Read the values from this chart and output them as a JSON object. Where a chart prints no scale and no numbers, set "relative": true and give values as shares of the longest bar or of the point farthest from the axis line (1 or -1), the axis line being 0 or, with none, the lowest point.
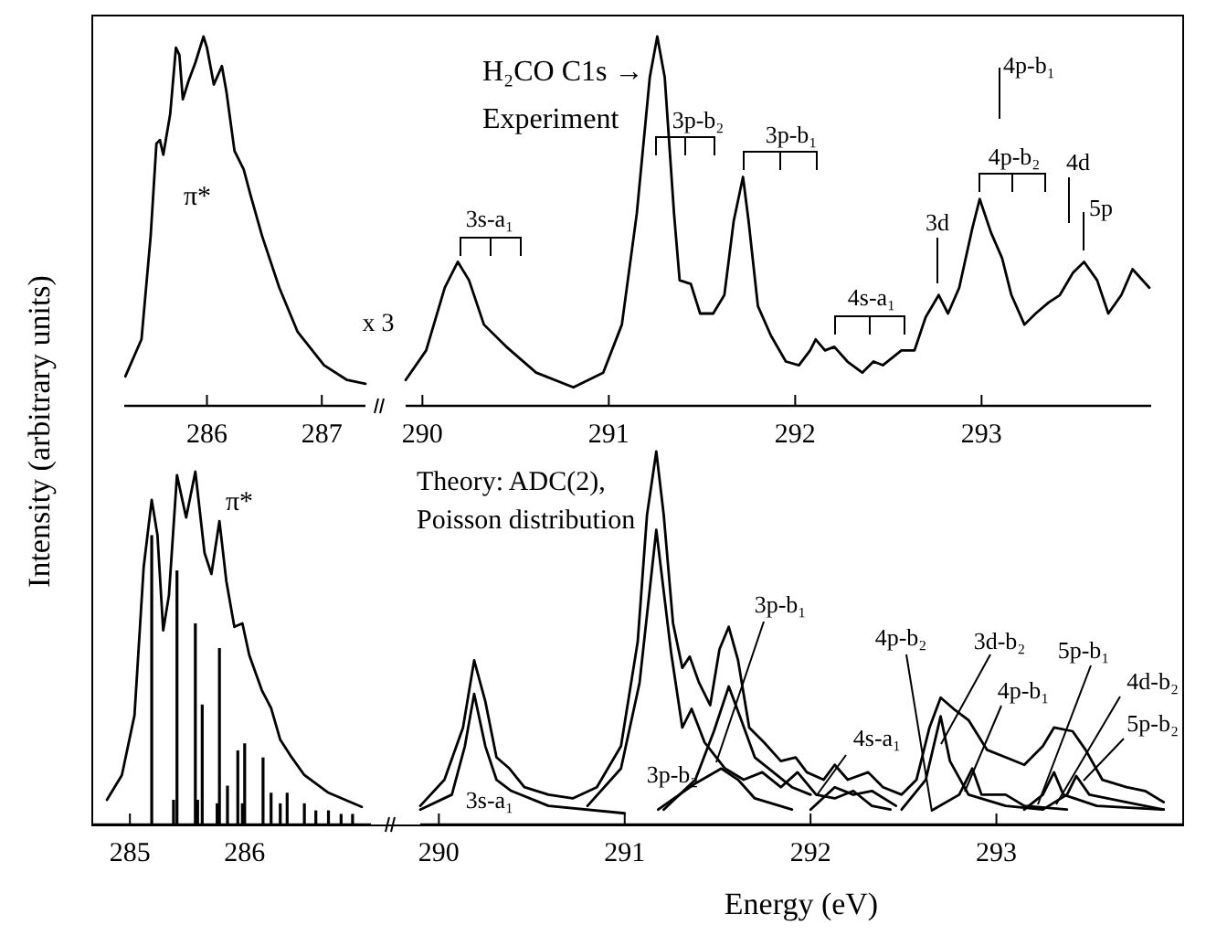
{
  "chart_data": [
    {
      "type": "line",
      "relative": true,
      "tick_labels": "x",
      "xlim": [
        285.28,
        287.38
      ],
      "xticks": [
        286,
        287
      ],
      "ylabel": "Intensity (arbitrary units)",
      "series": [
        {
          "color": "#000000",
          "x": [
            285.29,
            285.43,
            285.51,
            285.56,
            285.59,
            285.62,
            285.68,
            285.73,
            285.76,
            285.79,
            285.84,
            285.9,
            285.97,
            286,
            286.06,
            286.13,
            286.17,
            286.24,
            286.32,
            286.38,
            286.48,
            286.63,
            286.79,
            287.02,
            287.22,
            287.38
          ],
          "values": [
            0.08,
            0.18,
            0.46,
            0.71,
            0.72,
            0.68,
            0.79,
            0.97,
            0.95,
            0.83,
            0.88,
            0.93,
            1,
            0.97,
            0.87,
            0.92,
            0.85,
            0.69,
            0.64,
            0.57,
            0.46,
            0.32,
            0.2,
            0.11,
            0.07,
            0.06
          ]
        }
      ],
      "annotations": [
        "π*"
      ]
    },
    {
      "type": "line",
      "relative": true,
      "tick_labels": "x",
      "xlim": [
        289.91,
        293.91
      ],
      "xticks": [
        290,
        291,
        292,
        293
      ],
      "series": [
        {
          "color": "#000000",
          "x": [
            289.91,
            290.02,
            290.12,
            290.19,
            290.25,
            290.33,
            290.45,
            290.61,
            290.81,
            290.97,
            291.07,
            291.15,
            291.22,
            291.26,
            291.3,
            291.35,
            291.38,
            291.44,
            291.49,
            291.56,
            291.62,
            291.67,
            291.72,
            291.75,
            291.8,
            291.87,
            291.95,
            292.02,
            292.08,
            292.11,
            292.16,
            292.21,
            292.28,
            292.36,
            292.42,
            292.47,
            292.57,
            292.64,
            292.7,
            292.77,
            292.82,
            292.88,
            292.95,
            292.99,
            293.05,
            293.11,
            293.16,
            293.23,
            293.29,
            293.36,
            293.42,
            293.49,
            293.55,
            293.62,
            293.68,
            293.75,
            293.81,
            293.9
          ],
          "values": [
            0.07,
            0.15,
            0.32,
            0.39,
            0.34,
            0.22,
            0.16,
            0.09,
            0.05,
            0.09,
            0.22,
            0.52,
            0.89,
            1,
            0.89,
            0.52,
            0.34,
            0.33,
            0.25,
            0.25,
            0.3,
            0.5,
            0.62,
            0.5,
            0.27,
            0.19,
            0.12,
            0.11,
            0.15,
            0.18,
            0.15,
            0.16,
            0.12,
            0.09,
            0.12,
            0.11,
            0.15,
            0.15,
            0.24,
            0.3,
            0.25,
            0.32,
            0.48,
            0.56,
            0.47,
            0.4,
            0.3,
            0.22,
            0.25,
            0.28,
            0.3,
            0.36,
            0.39,
            0.34,
            0.25,
            0.3,
            0.37,
            0.32
          ]
        }
      ],
      "annotations": [
        "H₂CO  C1s →",
        "Experiment",
        "x 3",
        "3s-a₁",
        "3p-b₂",
        "3p-b₁",
        "4s-a₁",
        "4p-b₂",
        "4p-b₁",
        "3d",
        "4d",
        "5p"
      ]
    },
    {
      "type": "line",
      "relative": true,
      "tick_labels": "x",
      "xlim": [
        284.68,
        287.1
      ],
      "xticks": [
        285,
        286
      ],
      "series": [
        {
          "color": "#000000",
          "x": [
            284.8,
            284.93,
            285.04,
            285.12,
            285.19,
            285.24,
            285.29,
            285.34,
            285.41,
            285.49,
            285.57,
            285.65,
            285.71,
            285.78,
            285.84,
            285.91,
            285.98,
            286.04,
            286.15,
            286.23,
            286.31,
            286.41,
            286.52,
            286.73,
            287.02
          ],
          "values": [
            0.07,
            0.14,
            0.31,
            0.73,
            0.92,
            0.82,
            0.55,
            0.65,
            0.99,
            0.87,
            1,
            0.77,
            0.71,
            0.86,
            0.69,
            0.56,
            0.57,
            0.48,
            0.38,
            0.33,
            0.24,
            0.19,
            0.14,
            0.09,
            0.05
          ]
        },
        {
          "type": "bar",
          "color": "#000000",
          "x": [
            285.19,
            285.38,
            285.41,
            285.57,
            285.59,
            285.63,
            285.76,
            285.78,
            285.85,
            285.94,
            285.98,
            286,
            286.16,
            286.23,
            286.31,
            286.37,
            286.52,
            286.62,
            286.73,
            286.84,
            286.94
          ],
          "values": [
            0.82,
            0.07,
            0.72,
            0.57,
            0.07,
            0.34,
            0.06,
            0.5,
            0.11,
            0.21,
            0.06,
            0.23,
            0.19,
            0.09,
            0.06,
            0.09,
            0.06,
            0.04,
            0.04,
            0.03,
            0.03
          ]
        }
      ],
      "annotations": [
        "π*"
      ]
    },
    {
      "type": "line",
      "relative": true,
      "tick_labels": "x",
      "xlim": [
        289.9,
        294.0
      ],
      "xticks": [
        290,
        291,
        292,
        293
      ],
      "xlabel": "Energy (eV)",
      "series": [
        {
          "color": "#000000",
          "x": [
            289.9,
            290.03,
            290.13,
            290.19,
            290.25,
            290.31,
            290.38,
            290.46,
            290.59,
            290.72,
            290.85,
            290.98,
            291.07,
            291.12,
            291.17,
            291.21,
            291.26,
            291.31,
            291.35,
            291.4,
            291.46,
            291.51,
            291.56,
            291.61,
            291.67,
            291.75,
            291.84,
            291.92,
            291.98,
            292.07,
            292.13,
            292.2,
            292.31,
            292.39,
            292.49,
            292.57,
            292.64,
            292.7,
            292.77,
            292.85,
            292.95,
            293.05,
            293.15,
            293.25,
            293.31,
            293.41,
            293.48,
            293.57,
            293.7,
            293.8,
            293.9
          ],
          "values": [
            0.05,
            0.12,
            0.26,
            0.44,
            0.33,
            0.18,
            0.15,
            0.1,
            0.08,
            0.07,
            0.1,
            0.21,
            0.49,
            0.83,
            1,
            0.83,
            0.54,
            0.42,
            0.45,
            0.38,
            0.32,
            0.47,
            0.53,
            0.44,
            0.26,
            0.22,
            0.17,
            0.18,
            0.14,
            0.12,
            0.16,
            0.12,
            0.14,
            0.1,
            0.08,
            0.12,
            0.26,
            0.34,
            0.31,
            0.28,
            0.2,
            0.18,
            0.16,
            0.21,
            0.26,
            0.25,
            0.2,
            0.12,
            0.1,
            0.09,
            0.06
          ]
        },
        {
          "color": "#000000",
          "x": [
            289.9,
            290.07,
            290.14,
            290.19,
            290.25,
            290.31,
            290.39,
            290.59,
            291.0
          ],
          "values": [
            0.04,
            0.08,
            0.21,
            0.35,
            0.21,
            0.12,
            0.09,
            0.05,
            0.03
          ]
        },
        {
          "color": "#000000",
          "x": [
            290.8,
            290.98,
            291.08,
            291.17,
            291.25,
            291.31,
            291.36,
            291.43,
            291.54,
            291.64,
            291.74,
            291.84,
            291.93,
            292.03,
            292.13,
            292.23,
            292.33,
            292.43
          ],
          "values": [
            0.05,
            0.15,
            0.38,
            0.79,
            0.46,
            0.26,
            0.31,
            0.22,
            0.15,
            0.12,
            0.14,
            0.1,
            0.14,
            0.08,
            0.07,
            0.09,
            0.05,
            0.04
          ]
        },
        {
          "color": "#000000",
          "x": [
            291.21,
            291.38,
            291.48,
            291.56,
            291.62,
            291.7,
            291.8,
            291.9,
            292.0
          ],
          "values": [
            0.04,
            0.12,
            0.25,
            0.37,
            0.29,
            0.18,
            0.14,
            0.1,
            0.08
          ]
        },
        {
          "color": "#000000",
          "x": [
            291.18,
            291.38,
            291.52,
            291.61,
            291.7,
            291.9
          ],
          "values": [
            0.04,
            0.11,
            0.15,
            0.12,
            0.07,
            0.04
          ]
        },
        {
          "color": "#000000",
          "x": [
            292.0,
            292.13,
            292.23,
            292.33,
            292.46
          ],
          "values": [
            0.04,
            0.1,
            0.08,
            0.09,
            0.05
          ]
        },
        {
          "color": "#000000",
          "x": [
            292.49,
            292.62,
            292.7,
            292.75,
            292.85,
            293.05,
            293.25
          ],
          "values": [
            0.04,
            0.12,
            0.29,
            0.17,
            0.08,
            0.05,
            0.04
          ]
        },
        {
          "color": "#000000",
          "x": [
            292.66,
            292.8,
            292.87,
            292.92,
            293.05,
            293.15,
            293.38
          ],
          "values": [
            0.04,
            0.08,
            0.15,
            0.08,
            0.08,
            0.05,
            0.04
          ]
        },
        {
          "color": "#000000",
          "x": [
            293.15,
            293.25,
            293.31,
            293.36,
            293.54,
            293.9
          ],
          "values": [
            0.04,
            0.08,
            0.14,
            0.08,
            0.05,
            0.04
          ]
        },
        {
          "color": "#000000",
          "x": [
            293.25,
            293.38,
            293.43,
            293.5,
            293.7,
            293.9
          ],
          "values": [
            0.04,
            0.08,
            0.13,
            0.08,
            0.06,
            0.04
          ]
        }
      ],
      "annotations": [
        "Theory: ADC(2),",
        "Poisson distribution",
        "3s-a₁",
        "3p-b₂",
        "3p-b₁",
        "4s-a₁",
        "4p-b₂",
        "3d-b₂",
        "4p-b₁",
        "5p-b₁",
        "4d-b₂",
        "5p-b₂"
      ]
    }
  ]
}
